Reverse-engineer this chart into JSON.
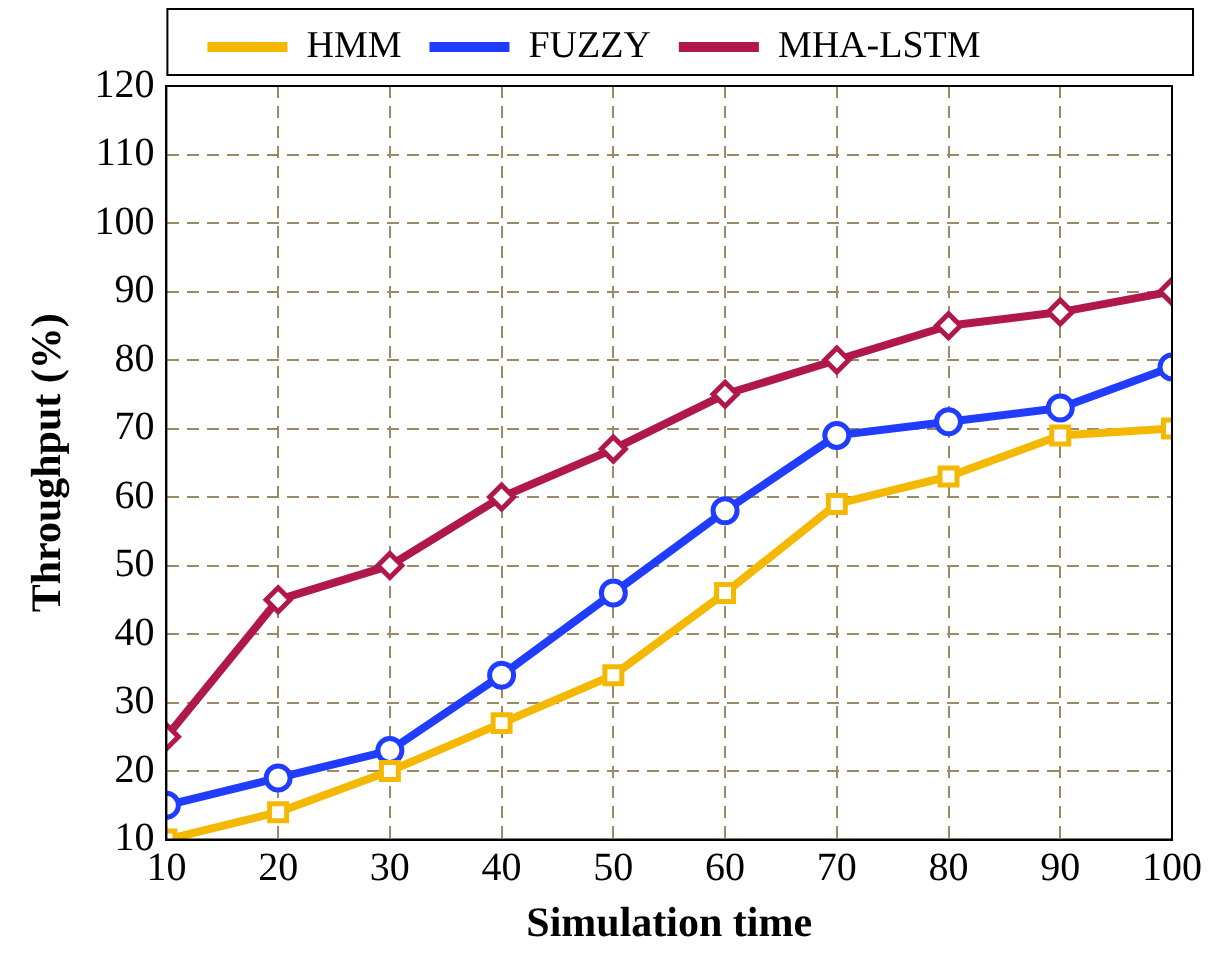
{
  "chart_data": {
    "type": "line",
    "xlabel": "Simulation time",
    "ylabel": "Throughput (%)",
    "x": [
      10,
      20,
      30,
      40,
      50,
      60,
      70,
      80,
      90,
      100
    ],
    "xlim": [
      10,
      100
    ],
    "xticks": [
      10,
      20,
      30,
      40,
      50,
      60,
      70,
      80,
      90,
      100
    ],
    "ylim": [
      10,
      120
    ],
    "yticks": [
      10,
      20,
      30,
      40,
      50,
      60,
      70,
      80,
      90,
      100,
      110,
      120
    ],
    "grid": true,
    "legend": "top",
    "series": [
      {
        "name": "HMM",
        "color": "#f5b800",
        "marker": "square",
        "values": [
          10,
          14,
          20,
          27,
          34,
          46,
          59,
          63,
          69,
          70
        ]
      },
      {
        "name": "FUZZY",
        "color": "#1f3cff",
        "marker": "circle",
        "values": [
          15,
          19,
          23,
          34,
          46,
          58,
          69,
          71,
          73,
          79
        ]
      },
      {
        "name": "MHA-LSTM",
        "color": "#b0174a",
        "marker": "diamond",
        "values": [
          25,
          45,
          50,
          60,
          67,
          75,
          80,
          85,
          87,
          90
        ]
      }
    ]
  }
}
